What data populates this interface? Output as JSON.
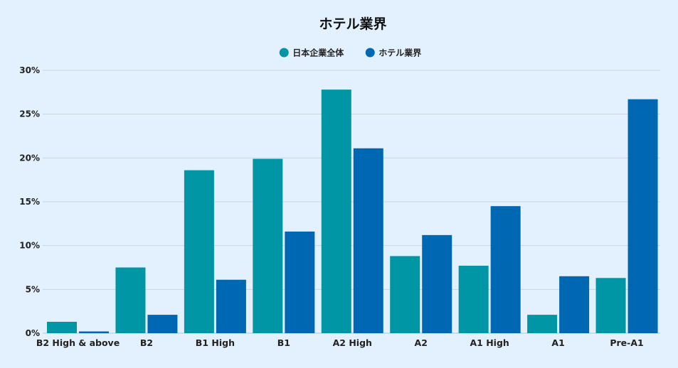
{
  "chart_data": {
    "type": "bar",
    "title": "ホテル業界",
    "categories": [
      "B2 High & above",
      "B2",
      "B1 High",
      "B1",
      "A2 High",
      "A2",
      "A1 High",
      "A1",
      "Pre-A1"
    ],
    "series": [
      {
        "name": "日本企業全体",
        "color": "#0096a6",
        "values": [
          1.3,
          7.5,
          18.6,
          19.9,
          27.8,
          8.8,
          7.7,
          2.1,
          6.3
        ]
      },
      {
        "name": "ホテル業界",
        "color": "#0068b3",
        "values": [
          0.2,
          2.1,
          6.1,
          11.6,
          21.1,
          11.2,
          14.5,
          6.5,
          26.7
        ]
      }
    ],
    "ylim": [
      0,
      30
    ],
    "yticks": [
      0,
      5,
      10,
      15,
      20,
      25,
      30
    ],
    "ytick_labels": [
      "0%",
      "5%",
      "10%",
      "15%",
      "20%",
      "25%",
      "30%"
    ],
    "xlabel": "",
    "ylabel": "",
    "grid": true,
    "legend_position": "top-center"
  }
}
